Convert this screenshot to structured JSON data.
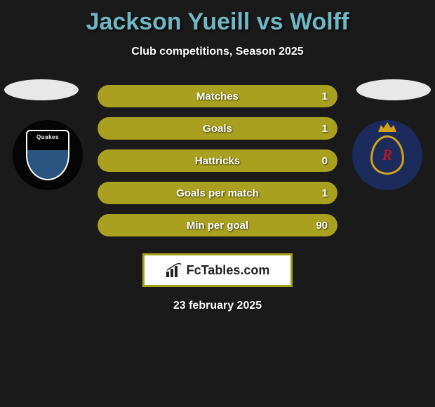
{
  "title": "Jackson Yueill vs Wolff",
  "subtitle": "Club competitions, Season 2025",
  "date": "23 february 2025",
  "brand": "FcTables.com",
  "colors": {
    "title": "#6db8c4",
    "bar_fill": "#aaa020",
    "bar_empty": "#6b6416",
    "brand_border": "#aaa020",
    "ellipse": "#e8e8e8",
    "background": "#1a1a1a"
  },
  "teams": {
    "left": {
      "name": "Quakes",
      "badge_bg": "#050505"
    },
    "right": {
      "name": "RSL",
      "badge_bg": "#1a2b5c",
      "accent": "#d4a018",
      "letter_color": "#b01830"
    }
  },
  "stats": [
    {
      "label": "Matches",
      "value": "1",
      "fill_pct": 100
    },
    {
      "label": "Goals",
      "value": "1",
      "fill_pct": 100
    },
    {
      "label": "Hattricks",
      "value": "0",
      "fill_pct": 100
    },
    {
      "label": "Goals per match",
      "value": "1",
      "fill_pct": 100
    },
    {
      "label": "Min per goal",
      "value": "90",
      "fill_pct": 100
    }
  ]
}
